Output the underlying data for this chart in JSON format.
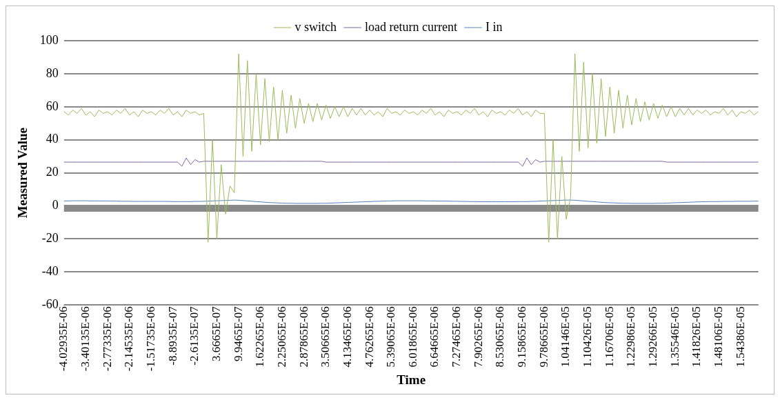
{
  "chart_data": {
    "type": "line",
    "xlabel": "Time",
    "ylabel": "Measured Value",
    "categories": [
      "-4.02935E-06",
      null,
      null,
      null,
      null,
      "-3.40135E-06",
      null,
      null,
      null,
      null,
      "-2.77335E-06",
      null,
      null,
      null,
      null,
      "-2.14535E-06",
      null,
      null,
      null,
      null,
      "-1.51735E-06",
      null,
      null,
      null,
      null,
      "-8.8935E-07",
      null,
      null,
      null,
      null,
      "-2.6135E-07",
      null,
      null,
      null,
      null,
      "3.6665E-07",
      null,
      null,
      null,
      null,
      "9.9465E-07",
      null,
      null,
      null,
      null,
      "1.62265E-06",
      null,
      null,
      null,
      null,
      "2.25065E-06",
      null,
      null,
      null,
      null,
      "2.87865E-06",
      null,
      null,
      null,
      null,
      "3.50665E-06",
      null,
      null,
      null,
      null,
      "4.13465E-06",
      null,
      null,
      null,
      null,
      "4.76265E-06",
      null,
      null,
      null,
      null,
      "5.39065E-06",
      null,
      null,
      null,
      null,
      "6.01865E-06",
      null,
      null,
      null,
      null,
      "6.64665E-06",
      null,
      null,
      null,
      null,
      "7.27465E-06",
      null,
      null,
      null,
      null,
      "7.90265E-06",
      null,
      null,
      null,
      null,
      "8.53065E-06",
      null,
      null,
      null,
      null,
      "9.15865E-06",
      null,
      null,
      null,
      null,
      "9.78665E-06",
      null,
      null,
      null,
      null,
      "1.04146E-05",
      null,
      null,
      null,
      null,
      "1.10426E-05",
      null,
      null,
      null,
      null,
      "1.16706E-05",
      null,
      null,
      null,
      null,
      "1.22986E-05",
      null,
      null,
      null,
      null,
      "1.29266E-05",
      null,
      null,
      null,
      null,
      "1.35546E-05",
      null,
      null,
      null,
      null,
      "1.41826E-05",
      null,
      null,
      null,
      null,
      "1.48106E-05",
      null,
      null,
      null,
      null,
      "1.54386E-05",
      null,
      null,
      null,
      null
    ],
    "series": [
      {
        "name": "v switch",
        "color": "#9bbb59",
        "values": [
          57,
          55,
          58,
          56,
          59,
          55,
          57,
          54,
          58,
          56,
          57,
          55,
          58,
          56,
          59,
          55,
          57,
          54,
          58,
          56,
          57,
          55,
          58,
          56,
          59,
          55,
          57,
          54,
          58,
          56,
          57,
          55,
          56,
          -22,
          40,
          -20,
          25,
          -5,
          12,
          8,
          92,
          30,
          88,
          33,
          80,
          37,
          77,
          39,
          72,
          40,
          70,
          44,
          67,
          47,
          65,
          50,
          62,
          51,
          62,
          52,
          61,
          53,
          60,
          54,
          60,
          54,
          59,
          55,
          59,
          55,
          58,
          55,
          57,
          54,
          59,
          56,
          57,
          55,
          58,
          56,
          57,
          55,
          58,
          56,
          59,
          55,
          57,
          54,
          58,
          56,
          57,
          55,
          58,
          56,
          59,
          55,
          57,
          54,
          58,
          56,
          57,
          55,
          58,
          56,
          59,
          55,
          57,
          54,
          58,
          56,
          56,
          -22,
          40,
          -20,
          30,
          -8,
          5,
          92,
          33,
          87,
          35,
          80,
          38,
          77,
          42,
          72,
          44,
          70,
          47,
          67,
          49,
          65,
          51,
          63,
          52,
          62,
          53,
          61,
          54,
          60,
          54,
          59,
          55,
          59,
          55,
          58,
          56,
          58,
          55,
          57,
          56,
          59,
          55,
          58,
          54,
          57,
          56,
          58,
          55,
          57
        ]
      },
      {
        "name": "load return current",
        "color": "#8064a2",
        "values": [
          26.5,
          26.5,
          26.5,
          26.5,
          26.5,
          26.5,
          26.5,
          26.5,
          26.5,
          26.5,
          26.5,
          26.5,
          26.5,
          26.5,
          26.5,
          26.5,
          26.5,
          26.5,
          26.5,
          26.5,
          26.5,
          26.5,
          26.5,
          26.5,
          26.5,
          26.5,
          26.5,
          24,
          29,
          25,
          28,
          26.5,
          27,
          27,
          27,
          27,
          27,
          27,
          27,
          27,
          27,
          27,
          27,
          27,
          27,
          27,
          27,
          27,
          27,
          27,
          27,
          27,
          27,
          27,
          27,
          27,
          27,
          27,
          27,
          27,
          26.5,
          26.5,
          26.5,
          26.5,
          26.5,
          26.5,
          26.5,
          26.5,
          26.5,
          26.5,
          26.5,
          26.5,
          26.5,
          26.5,
          26.5,
          26.5,
          26.5,
          26.5,
          26.5,
          26.5,
          26.5,
          26.5,
          26.5,
          26.5,
          26.5,
          26.5,
          26.5,
          26.5,
          26.5,
          26.5,
          26.5,
          26.5,
          26.5,
          26.5,
          26.5,
          26.5,
          26.5,
          26.5,
          26.5,
          26.5,
          26.5,
          26.5,
          26.5,
          26.5,
          26.5,
          24,
          29,
          25,
          28,
          26.5,
          27,
          27,
          27,
          27,
          27,
          27,
          27,
          27,
          27,
          27,
          27,
          27,
          27,
          27,
          27,
          27,
          27,
          27,
          27,
          27,
          27,
          27,
          27,
          27,
          27,
          27,
          27,
          27,
          26.5,
          26.5,
          26.5,
          26.5,
          26.5,
          26.5,
          26.5,
          26.5,
          26.5,
          26.5,
          26.5,
          26.5,
          26.5,
          26.5,
          26.5,
          26.5,
          26.5,
          26.5,
          26.5,
          26.5,
          26.5,
          26.5
        ]
      },
      {
        "name": "I in",
        "color": "#4f81bd",
        "values": [
          3,
          3,
          3.1,
          3.1,
          3.1,
          3.1,
          3,
          3,
          3,
          3,
          3,
          2.9,
          2.9,
          2.8,
          2.8,
          2.8,
          2.7,
          2.7,
          2.7,
          2.7,
          2.7,
          2.7,
          2.7,
          2.7,
          2.7,
          2.6,
          2.6,
          2.6,
          2.6,
          2.6,
          2.7,
          2.7,
          2.8,
          2.9,
          3,
          3.1,
          3.2,
          3.3,
          3.4,
          3.5,
          3.4,
          3.2,
          3,
          2.8,
          2.6,
          2.4,
          2.2,
          2,
          1.9,
          1.8,
          1.7,
          1.6,
          1.6,
          1.5,
          1.5,
          1.5,
          1.5,
          1.5,
          1.5,
          1.6,
          1.6,
          1.7,
          1.8,
          1.9,
          2,
          2.1,
          2.2,
          2.3,
          2.4,
          2.5,
          2.6,
          2.7,
          2.8,
          2.9,
          3,
          3,
          3.1,
          3.1,
          3.1,
          3.1,
          3.1,
          3.1,
          3.1,
          3,
          3,
          3,
          2.9,
          2.9,
          2.9,
          2.8,
          2.8,
          2.7,
          2.7,
          2.6,
          2.6,
          2.5,
          2.5,
          2.5,
          2.5,
          2.5,
          2.5,
          2.5,
          2.5,
          2.5,
          2.6,
          2.6,
          2.6,
          2.7,
          2.8,
          2.9,
          3,
          3.1,
          3.2,
          3.3,
          3.4,
          3.5,
          3.5,
          3.4,
          3.2,
          3,
          2.8,
          2.6,
          2.4,
          2.2,
          2,
          1.9,
          1.8,
          1.7,
          1.6,
          1.6,
          1.5,
          1.5,
          1.5,
          1.5,
          1.5,
          1.5,
          1.6,
          1.6,
          1.7,
          1.8,
          1.9,
          2,
          2.1,
          2.2,
          2.3,
          2.4,
          2.5,
          2.5,
          2.6,
          2.6,
          2.6,
          2.7,
          2.7,
          2.7,
          2.8,
          2.8,
          2.8,
          2.8,
          2.9,
          2.9
        ]
      }
    ],
    "ylim": [
      -60,
      100
    ],
    "yticks": [
      -60,
      -40,
      -20,
      0,
      20,
      40,
      60,
      80,
      100
    ],
    "ref_lines": [
      {
        "axis": "y",
        "value": -1.5,
        "color": "#898989"
      }
    ],
    "grid": "y",
    "legend": "top",
    "marker": "none",
    "line_style": "solid"
  }
}
